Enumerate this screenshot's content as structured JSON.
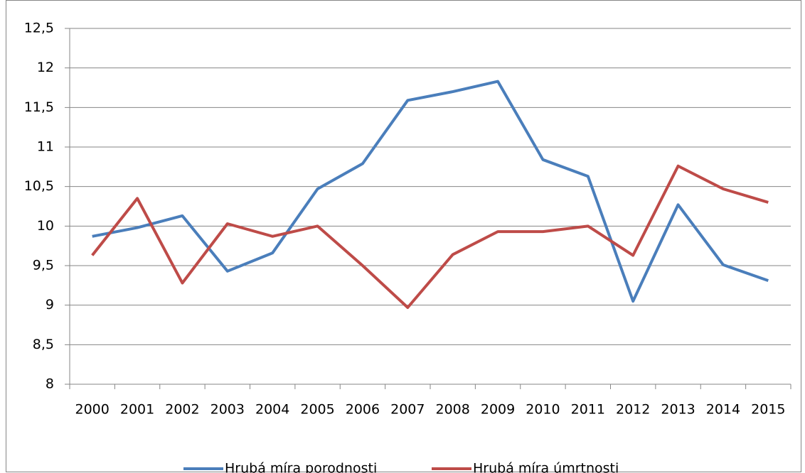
{
  "chart_data": {
    "type": "line",
    "categories": [
      "2000",
      "2001",
      "2002",
      "2003",
      "2004",
      "2005",
      "2006",
      "2007",
      "2008",
      "2009",
      "2010",
      "2011",
      "2012",
      "2013",
      "2014",
      "2015"
    ],
    "series": [
      {
        "name": "Hrubá míra porodnosti",
        "color": "#4a7ebb",
        "values": [
          9.87,
          9.98,
          10.13,
          9.43,
          9.66,
          10.47,
          10.79,
          11.59,
          11.7,
          11.83,
          10.84,
          10.63,
          9.05,
          10.27,
          9.51,
          9.31
        ]
      },
      {
        "name": "Hrubá míra úmrtnosti",
        "color": "#be4b48",
        "values": [
          9.63,
          10.35,
          9.28,
          10.03,
          9.87,
          10.0,
          9.5,
          8.97,
          9.64,
          9.93,
          9.93,
          10.0,
          9.63,
          10.76,
          10.47,
          10.3
        ]
      }
    ],
    "ylim": [
      8,
      12.5
    ],
    "yticks": [
      8,
      {
        "value": 8.5,
        "label": "8,5"
      },
      9,
      {
        "value": 9.5,
        "label": "9,5"
      },
      10,
      {
        "value": 10.5,
        "label": "10,5"
      },
      11,
      {
        "value": 11.5,
        "label": "11,5"
      },
      12,
      {
        "value": 12.5,
        "label": "12,5"
      }
    ],
    "grid": true,
    "legend": "bottom"
  }
}
